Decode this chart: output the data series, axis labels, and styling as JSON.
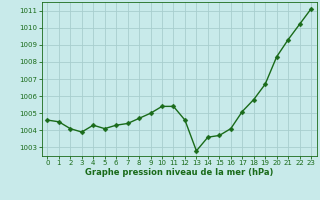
{
  "x": [
    0,
    1,
    2,
    3,
    4,
    5,
    6,
    7,
    8,
    9,
    10,
    11,
    12,
    13,
    14,
    15,
    16,
    17,
    18,
    19,
    20,
    21,
    22,
    23
  ],
  "y": [
    1004.6,
    1004.5,
    1004.1,
    1003.9,
    1004.3,
    1004.1,
    1004.3,
    1004.4,
    1004.7,
    1005.0,
    1005.4,
    1005.4,
    1004.6,
    1002.8,
    1003.6,
    1003.7,
    1004.1,
    1005.1,
    1005.8,
    1006.7,
    1008.3,
    1009.3,
    1010.2,
    1011.1
  ],
  "line_color": "#1a6b1a",
  "marker_color": "#1a6b1a",
  "bg_color": "#c8eaea",
  "grid_color": "#a8cece",
  "xlabel": "Graphe pression niveau de la mer (hPa)",
  "xlabel_color": "#1a6b1a",
  "tick_color": "#1a6b1a",
  "ylim": [
    1002.5,
    1011.5
  ],
  "yticks": [
    1003,
    1004,
    1005,
    1006,
    1007,
    1008,
    1009,
    1010,
    1011
  ],
  "xlim": [
    -0.5,
    23.5
  ],
  "xticks": [
    0,
    1,
    2,
    3,
    4,
    5,
    6,
    7,
    8,
    9,
    10,
    11,
    12,
    13,
    14,
    15,
    16,
    17,
    18,
    19,
    20,
    21,
    22,
    23
  ],
  "spine_color": "#1a6b1a",
  "marker_size": 2.5,
  "linewidth": 1.0,
  "tick_fontsize": 5.0,
  "xlabel_fontsize": 6.0
}
